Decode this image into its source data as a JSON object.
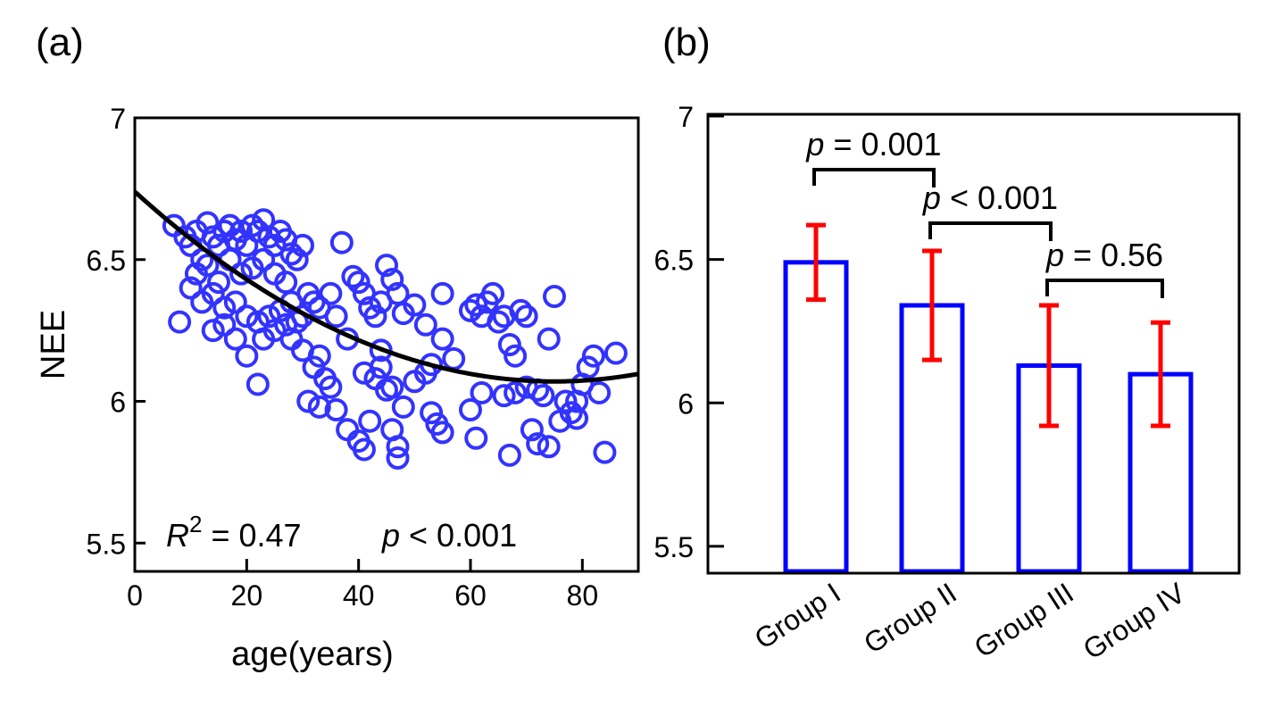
{
  "chart_data": [
    {
      "type": "scatter",
      "panel_label": "(a)",
      "xlabel": "age(years)",
      "ylabel": "NEE",
      "xlim": [
        0,
        90
      ],
      "ylim": [
        5.4,
        7.0
      ],
      "xticks": [
        0,
        20,
        40,
        60,
        80
      ],
      "yticks": [
        5.5,
        6,
        6.5,
        7
      ],
      "ytick_labels": [
        "5.5",
        "6",
        "6.5",
        "7"
      ],
      "grid": false,
      "marker_color": "#3333ff",
      "fit_color": "#000000",
      "fit": {
        "type": "quadratic",
        "vertex_x": 75,
        "vertex_y": 6.07,
        "a": 0.000119
      },
      "annotation": {
        "r_label": "R",
        "r_sup": "2",
        "r_value": " = 0.47",
        "p_label": "p",
        "p_value": " < 0.001"
      },
      "points": [
        [
          7,
          6.62
        ],
        [
          9,
          6.58
        ],
        [
          10,
          6.55
        ],
        [
          11,
          6.6
        ],
        [
          12,
          6.5
        ],
        [
          13,
          6.63
        ],
        [
          14,
          6.58
        ],
        [
          15,
          6.55
        ],
        [
          16,
          6.6
        ],
        [
          17,
          6.62
        ],
        [
          18,
          6.57
        ],
        [
          19,
          6.6
        ],
        [
          20,
          6.55
        ],
        [
          21,
          6.62
        ],
        [
          22,
          6.6
        ],
        [
          23,
          6.64
        ],
        [
          24,
          6.58
        ],
        [
          25,
          6.55
        ],
        [
          26,
          6.6
        ],
        [
          27,
          6.57
        ],
        [
          28,
          6.52
        ],
        [
          29,
          6.5
        ],
        [
          30,
          6.55
        ],
        [
          11,
          6.45
        ],
        [
          13,
          6.48
        ],
        [
          15,
          6.42
        ],
        [
          17,
          6.5
        ],
        [
          19,
          6.45
        ],
        [
          21,
          6.47
        ],
        [
          23,
          6.5
        ],
        [
          25,
          6.45
        ],
        [
          27,
          6.42
        ],
        [
          10,
          6.4
        ],
        [
          8,
          6.28
        ],
        [
          12,
          6.35
        ],
        [
          14,
          6.38
        ],
        [
          16,
          6.33
        ],
        [
          18,
          6.35
        ],
        [
          20,
          6.3
        ],
        [
          22,
          6.28
        ],
        [
          24,
          6.3
        ],
        [
          26,
          6.32
        ],
        [
          28,
          6.35
        ],
        [
          30,
          6.3
        ],
        [
          32,
          6.35
        ],
        [
          14,
          6.25
        ],
        [
          16,
          6.27
        ],
        [
          18,
          6.22
        ],
        [
          20,
          6.16
        ],
        [
          22,
          6.06
        ],
        [
          23,
          6.22
        ],
        [
          25,
          6.25
        ],
        [
          27,
          6.27
        ],
        [
          29,
          6.28
        ],
        [
          31,
          6.38
        ],
        [
          33,
          6.33
        ],
        [
          35,
          6.38
        ],
        [
          37,
          6.56
        ],
        [
          36,
          6.3
        ],
        [
          38,
          6.22
        ],
        [
          39,
          6.44
        ],
        [
          40,
          6.42
        ],
        [
          41,
          6.38
        ],
        [
          42,
          6.33
        ],
        [
          43,
          6.3
        ],
        [
          44,
          6.35
        ],
        [
          45,
          6.48
        ],
        [
          46,
          6.43
        ],
        [
          47,
          6.38
        ],
        [
          48,
          6.31
        ],
        [
          50,
          6.34
        ],
        [
          52,
          6.27
        ],
        [
          55,
          6.22
        ],
        [
          55,
          6.38
        ],
        [
          32,
          6.12
        ],
        [
          33,
          6.16
        ],
        [
          34,
          6.08
        ],
        [
          35,
          6.05
        ],
        [
          33,
          5.98
        ],
        [
          31,
          6.0
        ],
        [
          36,
          5.97
        ],
        [
          38,
          5.9
        ],
        [
          40,
          5.86
        ],
        [
          41,
          5.83
        ],
        [
          42,
          5.93
        ],
        [
          41,
          6.1
        ],
        [
          43,
          6.08
        ],
        [
          44,
          6.12
        ],
        [
          45,
          6.04
        ],
        [
          46,
          5.9
        ],
        [
          47,
          5.84
        ],
        [
          47,
          5.8
        ],
        [
          48,
          5.98
        ],
        [
          50,
          6.07
        ],
        [
          52,
          6.1
        ],
        [
          53,
          6.13
        ],
        [
          53,
          5.96
        ],
        [
          54,
          5.92
        ],
        [
          55,
          5.89
        ],
        [
          57,
          6.15
        ],
        [
          60,
          6.32
        ],
        [
          61,
          6.34
        ],
        [
          62,
          6.3
        ],
        [
          63,
          6.35
        ],
        [
          64,
          6.38
        ],
        [
          65,
          6.28
        ],
        [
          66,
          6.3
        ],
        [
          67,
          6.2
        ],
        [
          68,
          6.16
        ],
        [
          69,
          6.32
        ],
        [
          70,
          6.3
        ],
        [
          75,
          6.37
        ],
        [
          74,
          6.22
        ],
        [
          60,
          5.97
        ],
        [
          61,
          5.87
        ],
        [
          62,
          6.03
        ],
        [
          66,
          6.02
        ],
        [
          68,
          6.03
        ],
        [
          70,
          6.05
        ],
        [
          72,
          6.04
        ],
        [
          73,
          6.02
        ],
        [
          71,
          5.9
        ],
        [
          72,
          5.85
        ],
        [
          74,
          5.84
        ],
        [
          67,
          5.81
        ],
        [
          77,
          6.0
        ],
        [
          78,
          5.96
        ],
        [
          79,
          6.0
        ],
        [
          80,
          6.06
        ],
        [
          81,
          6.12
        ],
        [
          82,
          6.16
        ],
        [
          83,
          6.03
        ],
        [
          84,
          5.82
        ],
        [
          86,
          6.17
        ],
        [
          76,
          5.93
        ],
        [
          79,
          5.94
        ],
        [
          44,
          6.18
        ],
        [
          46,
          6.05
        ],
        [
          30,
          6.18
        ],
        [
          28,
          6.22
        ]
      ]
    },
    {
      "type": "bar",
      "panel_label": "(b)",
      "categories": [
        "Group I",
        "Group II",
        "Group III",
        "Group IV"
      ],
      "values": [
        6.49,
        6.34,
        6.13,
        6.1
      ],
      "errors": [
        0.13,
        0.19,
        0.21,
        0.18
      ],
      "ylim": [
        5.4,
        7.0
      ],
      "yticks": [
        5.5,
        6,
        6.5,
        7
      ],
      "ytick_labels": [
        "5.5",
        "6",
        "6.5",
        "7"
      ],
      "bar_color": "#0000ff",
      "error_color": "#ff0000",
      "comparisons": [
        {
          "from": 0,
          "to": 1,
          "p_label": "p",
          "text": " = 0.001"
        },
        {
          "from": 1,
          "to": 2,
          "p_label": "p",
          "text": " < 0.001"
        },
        {
          "from": 2,
          "to": 3,
          "p_label": "p",
          "text": " = 0.56"
        }
      ]
    }
  ]
}
